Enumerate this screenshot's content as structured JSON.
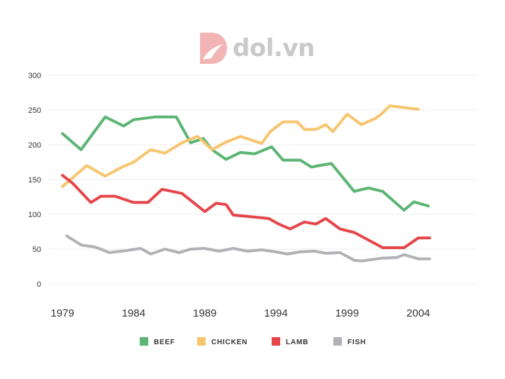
{
  "logo": {
    "text": "dol.vn"
  },
  "chart_data": {
    "type": "line",
    "title": "",
    "xlabel": "",
    "ylabel": "",
    "ylim": [
      0,
      300
    ],
    "yticks": [
      0,
      50,
      100,
      150,
      200,
      250,
      300
    ],
    "xlim": [
      1978,
      2008
    ],
    "xticks": [
      1979,
      1984,
      1989,
      1994,
      1999,
      2004
    ],
    "grid": true,
    "legend_position": "bottom",
    "series": [
      {
        "name": "BEEF",
        "color": "#5cb574",
        "x": [
          1979,
          1980.3,
          1982,
          1983.3,
          1984,
          1985.5,
          1986,
          1987,
          1988,
          1988.9,
          1989.5,
          1990.5,
          1991.5,
          1992.5,
          1993.7,
          1994.5,
          1995.7,
          1996.5,
          1997,
          1997.9,
          1999.5,
          2000.5,
          2001.5,
          2003,
          2003.7,
          2004.7
        ],
        "y": [
          216,
          193,
          240,
          227,
          236,
          240,
          240,
          240,
          203,
          209,
          193,
          179,
          189,
          187,
          197,
          178,
          178,
          168,
          170,
          173,
          133,
          138,
          133,
          106,
          118,
          112
        ]
      },
      {
        "name": "CHICKEN",
        "color": "#f8c56f",
        "x": [
          1979,
          1980.7,
          1982,
          1983.2,
          1984,
          1985.2,
          1986.2,
          1987.4,
          1988.5,
          1989.5,
          1990.5,
          1991.5,
          1993,
          1993.6,
          1994.5,
          1995.5,
          1996,
          1996.8,
          1997.5,
          1998,
          1999,
          2000,
          2001,
          2001.5,
          2002,
          2004
        ],
        "y": [
          140,
          170,
          155,
          168,
          175,
          193,
          188,
          203,
          212,
          193,
          204,
          212,
          202,
          219,
          233,
          233,
          222,
          222,
          229,
          219,
          244,
          229,
          238,
          246,
          256,
          251
        ]
      },
      {
        "name": "LAMB",
        "color": "#e5464a",
        "x": [
          1979,
          1979.7,
          1981,
          1981.7,
          1982.7,
          1984,
          1985,
          1986,
          1987.4,
          1989,
          1989.8,
          1990.5,
          1991,
          1992,
          1993.5,
          1994.2,
          1995,
          1996,
          1996.8,
          1997.5,
          1998.5,
          1999.5,
          2000.5,
          2001.5,
          2002.5,
          2003,
          2004,
          2004.8
        ],
        "y": [
          156,
          145,
          117,
          126,
          126,
          117,
          117,
          136,
          130,
          104,
          116,
          114,
          99,
          97,
          94,
          86,
          79,
          89,
          86,
          94,
          79,
          74,
          63,
          52,
          52,
          52,
          66,
          66
        ]
      },
      {
        "name": "FISH",
        "color": "#b2b2b6",
        "x": [
          1979.3,
          1980.3,
          1981.3,
          1982.3,
          1983.5,
          1984.5,
          1985.2,
          1986.2,
          1987.2,
          1988,
          1989,
          1990,
          1991,
          1992,
          1993,
          1994,
          1994.8,
          1995.7,
          1996.7,
          1997.5,
          1998.5,
          1999.5,
          2000,
          2001.5,
          2002.5,
          2003,
          2004,
          2004.8
        ],
        "y": [
          69,
          56,
          53,
          45,
          48,
          51,
          43,
          50,
          45,
          50,
          51,
          47,
          51,
          47,
          49,
          46,
          43,
          46,
          47,
          44,
          45,
          34,
          33,
          37,
          38,
          42,
          36,
          36
        ]
      }
    ]
  }
}
